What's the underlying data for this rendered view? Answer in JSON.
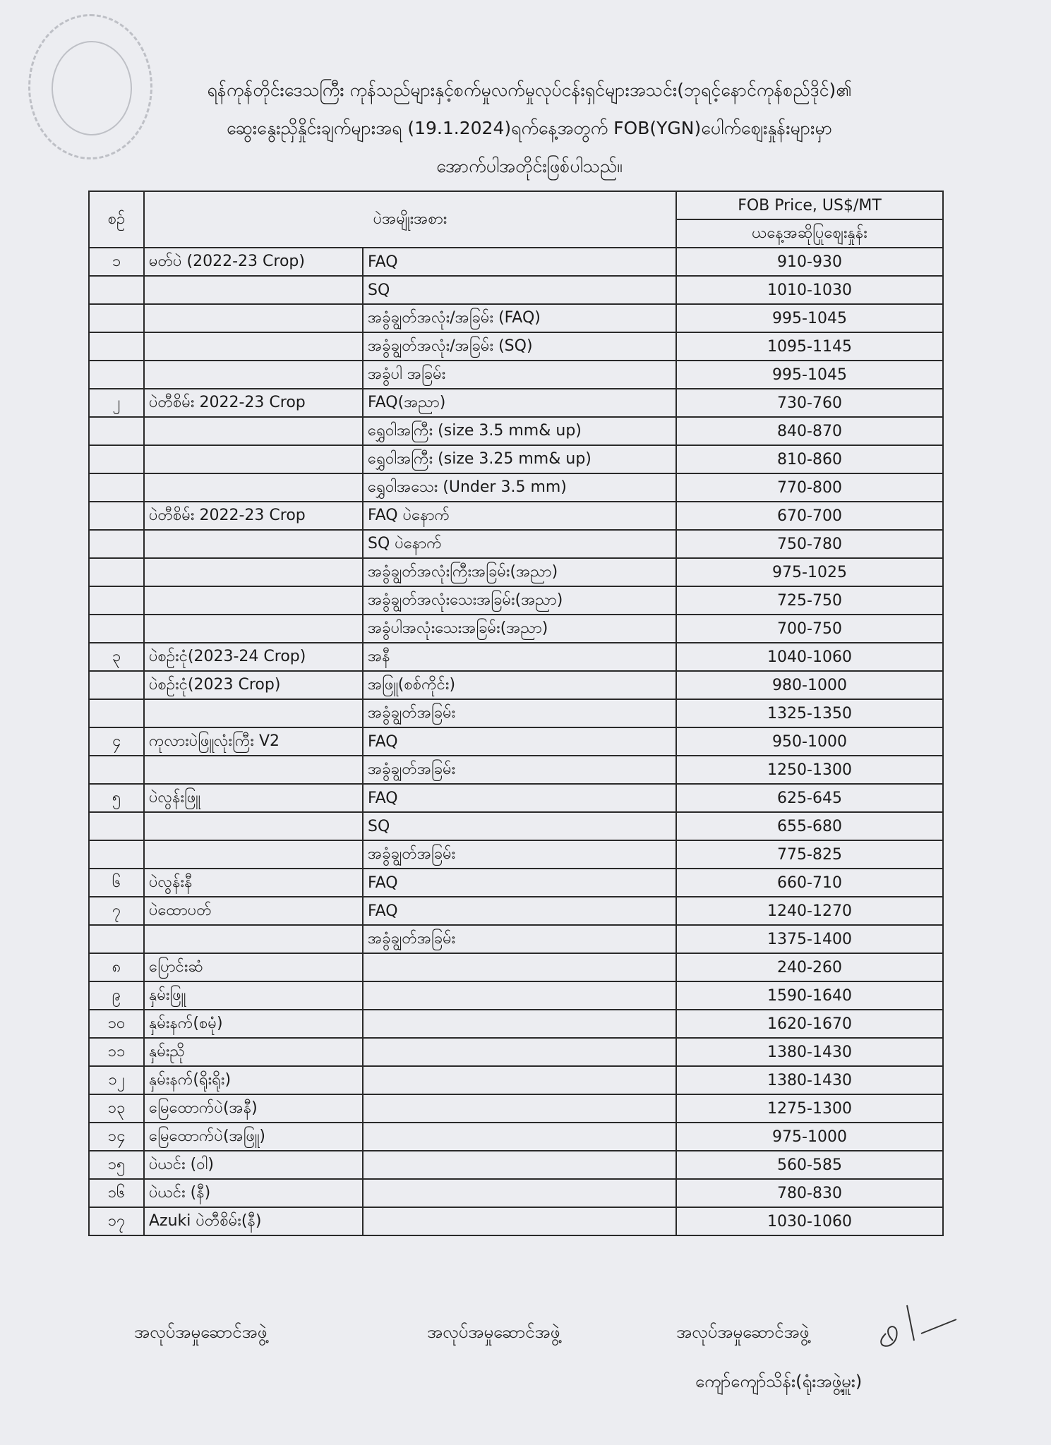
{
  "header": {
    "line1": "ရန်ကုန်တိုင်းဒေသကြီး ကုန်သည်များနှင့်စက်မှုလက်မှုလုပ်ငန်းရှင်များအသင်း(ဘုရင့်နောင်ကုန်စည်ဒိုင်)၏",
    "line2": "ဆွေးနွေးညှိနှိုင်းချက်များအရ (19.1.2024)ရက်နေ့အတွက် FOB(YGN)ပေါက်ဈေးနှုန်းများမှာ",
    "line3": "အောက်ပါအတိုင်းဖြစ်ပါသည်။"
  },
  "table": {
    "col_no": "စဉ်",
    "col_item": "ပဲအမျိုးအစား",
    "col_price": "FOB Price, US$/MT",
    "col_price_sub": "ယနေ့အဆိုပြုဈေးနှုန်း",
    "rows": [
      {
        "no": "၁",
        "item": "မတ်ပဲ (2022-23 Crop)",
        "grade": "FAQ",
        "price": "910-930"
      },
      {
        "no": "",
        "item": "",
        "grade": "SQ",
        "price": "1010-1030"
      },
      {
        "no": "",
        "item": "",
        "grade": "အခွံချွတ်အလုံး/အခြမ်း (FAQ)",
        "price": "995-1045"
      },
      {
        "no": "",
        "item": "",
        "grade": "အခွံချွတ်အလုံး/အခြမ်း (SQ)",
        "price": "1095-1145"
      },
      {
        "no": "",
        "item": "",
        "grade": "အခွံပါ အခြမ်း",
        "price": "995-1045"
      },
      {
        "no": "၂",
        "item": "ပဲတီစိမ်း 2022-23 Crop",
        "grade": "FAQ(အညာ)",
        "price": "730-760"
      },
      {
        "no": "",
        "item": "",
        "grade": "ရွှေဝါအကြီး (size 3.5 mm& up)",
        "price": "840-870"
      },
      {
        "no": "",
        "item": "",
        "grade": "ရွှေဝါအကြီး (size 3.25 mm& up)",
        "price": "810-860"
      },
      {
        "no": "",
        "item": "",
        "grade": "ရွှေဝါအသေး (Under 3.5 mm)",
        "price": "770-800"
      },
      {
        "no": "",
        "item": "ပဲတီစိမ်း 2022-23 Crop",
        "grade": "FAQ ပဲနောက်",
        "price": "670-700"
      },
      {
        "no": "",
        "item": "",
        "grade": "SQ ပဲနောက်",
        "price": "750-780"
      },
      {
        "no": "",
        "item": "",
        "grade": "အခွံချွတ်အလုံးကြီးအခြမ်း(အညာ)",
        "price": "975-1025"
      },
      {
        "no": "",
        "item": "",
        "grade": "အခွံချွတ်အလုံးသေးအခြမ်း(အညာ)",
        "price": "725-750"
      },
      {
        "no": "",
        "item": "",
        "grade": "အခွံပါအလုံးသေးအခြမ်း(အညာ)",
        "price": "700-750"
      },
      {
        "no": "၃",
        "item": "ပဲစဉ်းငုံ(2023-24 Crop)",
        "grade": "အနီ",
        "price": "1040-1060"
      },
      {
        "no": "",
        "item": "ပဲစဉ်းငုံ(2023 Crop)",
        "grade": "အဖြူ(စစ်ကိုင်း)",
        "price": "980-1000"
      },
      {
        "no": "",
        "item": "",
        "grade": "အခွံချွတ်အခြမ်း",
        "price": "1325-1350"
      },
      {
        "no": "၄",
        "item": "ကုလားပဲဖြူလုံးကြီး V2",
        "grade": "FAQ",
        "price": "950-1000"
      },
      {
        "no": "",
        "item": "",
        "grade": "အခွံချွတ်အခြမ်း",
        "price": "1250-1300"
      },
      {
        "no": "၅",
        "item": "ပဲလွန်းဖြူ",
        "grade": "FAQ",
        "price": "625-645"
      },
      {
        "no": "",
        "item": "",
        "grade": "SQ",
        "price": "655-680"
      },
      {
        "no": "",
        "item": "",
        "grade": "အခွံချွတ်အခြမ်း",
        "price": "775-825"
      },
      {
        "no": "၆",
        "item": "ပဲလွန်းနီ",
        "grade": "FAQ",
        "price": "660-710"
      },
      {
        "no": "၇",
        "item": "ပဲထောပတ်",
        "grade": "FAQ",
        "price": "1240-1270"
      },
      {
        "no": "",
        "item": "",
        "grade": "အခွံချွတ်အခြမ်း",
        "price": "1375-1400"
      },
      {
        "no": "၈",
        "item": "ပြောင်းဆံ",
        "grade": "",
        "price": "240-260"
      },
      {
        "no": "၉",
        "item": "နှမ်းဖြူ",
        "grade": "",
        "price": "1590-1640"
      },
      {
        "no": "၁၀",
        "item": "နှမ်းနက်(စမုံ)",
        "grade": "",
        "price": "1620-1670"
      },
      {
        "no": "၁၁",
        "item": "နှမ်းညို",
        "grade": "",
        "price": "1380-1430"
      },
      {
        "no": "၁၂",
        "item": "နှမ်းနက်(ရိုးရိုး)",
        "grade": "",
        "price": "1380-1430"
      },
      {
        "no": "၁၃",
        "item": "မြေထောက်ပဲ(အနီ)",
        "grade": "",
        "price": "1275-1300"
      },
      {
        "no": "၁၄",
        "item": "မြေထောက်ပဲ(အဖြူ)",
        "grade": "",
        "price": "975-1000"
      },
      {
        "no": "၁၅",
        "item": "ပဲယင်း (ဝါ)",
        "grade": "",
        "price": "560-585"
      },
      {
        "no": "၁၆",
        "item": "ပဲယင်း (နီ)",
        "grade": "",
        "price": "780-830"
      },
      {
        "no": "၁၇",
        "item": "Azuki ပဲတီစိမ်း(နီ)",
        "grade": "",
        "price": "1030-1060"
      }
    ]
  },
  "footer": {
    "sign1": "အလုပ်အမှုဆောင်အဖွဲ့",
    "sign2": "အလုပ်အမှုဆောင်အဖွဲ့",
    "sign3": "အလုပ်အမှုဆောင်အဖွဲ့",
    "name": "ကျော်ကျော်သိန်း(ရုံးအဖွဲ့မှူး)"
  }
}
